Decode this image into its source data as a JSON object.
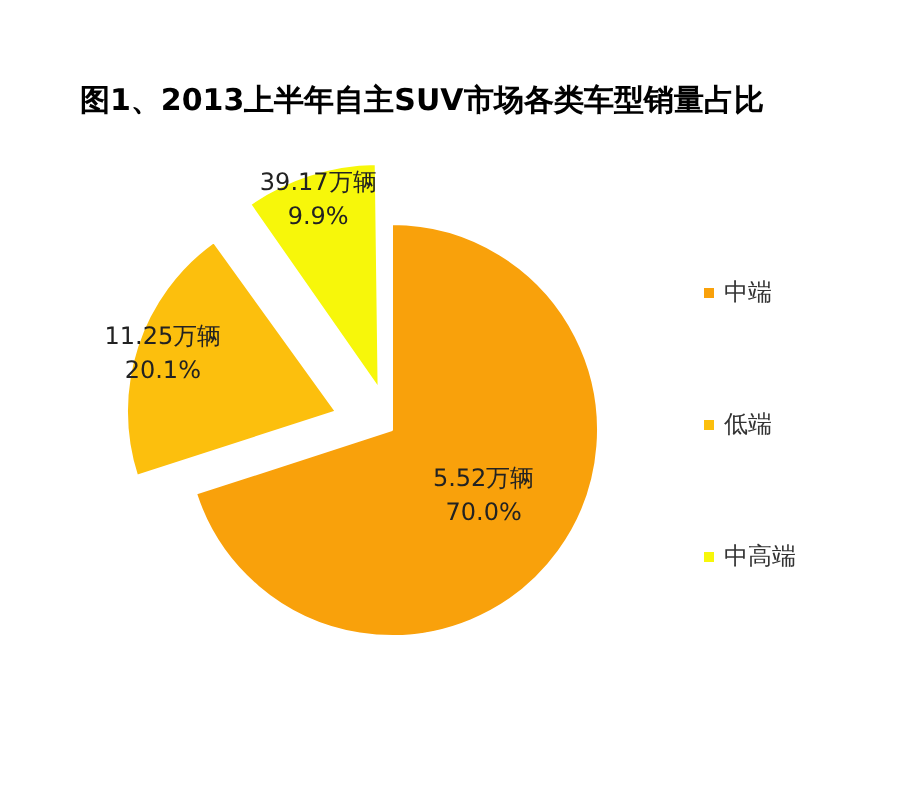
{
  "chart_data": {
    "type": "pie",
    "title": "图1、2013上半年自主SUV市场各类车型销量占比",
    "categories": [
      "中端",
      "低端",
      "中高端"
    ],
    "values": [
      70.0,
      20.1,
      9.9
    ],
    "colors": [
      "#f9a10b",
      "#fcbf0d",
      "#f7f70a"
    ],
    "value_labels": [
      "5.52万辆\n70.0%",
      "11.25万辆\n20.1%",
      "39.17万辆\n9.9%"
    ],
    "legend": "right"
  }
}
